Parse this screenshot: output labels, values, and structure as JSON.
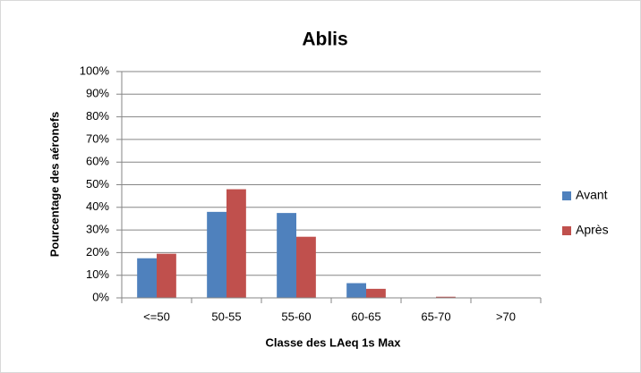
{
  "chart_data": {
    "type": "bar",
    "title": "Ablis",
    "x_label": "Classe des LAeq 1s Max",
    "y_label": "Pourcentage des aéronefs",
    "categories": [
      "<=50",
      "50-55",
      "55-60",
      "60-65",
      "65-70",
      ">70"
    ],
    "series": [
      {
        "name": "Avant",
        "color": "#4f81bd",
        "values": [
          17.5,
          38,
          37.5,
          6.5,
          0,
          0
        ]
      },
      {
        "name": "Après",
        "color": "#c0504d",
        "values": [
          19.5,
          48,
          27,
          4,
          0.5,
          0
        ]
      }
    ],
    "ylim": [
      0,
      100
    ],
    "yticks": [
      {
        "value": 0,
        "label": "0%"
      },
      {
        "value": 10,
        "label": "10%"
      },
      {
        "value": 20,
        "label": "20%"
      },
      {
        "value": 30,
        "label": "30%"
      },
      {
        "value": 40,
        "label": "40%"
      },
      {
        "value": 50,
        "label": "50%"
      },
      {
        "value": 60,
        "label": "60%"
      },
      {
        "value": 70,
        "label": "70%"
      },
      {
        "value": 80,
        "label": "80%"
      },
      {
        "value": 90,
        "label": "90%"
      },
      {
        "value": 100,
        "label": "100%"
      }
    ],
    "grid": true,
    "legend": "right"
  }
}
